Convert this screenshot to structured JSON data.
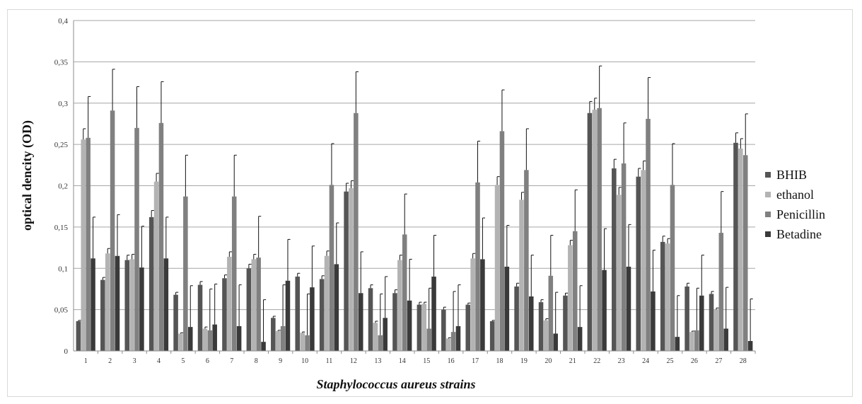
{
  "chart_data": {
    "type": "bar",
    "title": "",
    "xlabel": "Staphylococcus aureus strains",
    "ylabel": "optical dencity (OD)",
    "ylim": [
      0,
      0.4
    ],
    "yticks": [
      0,
      0.05,
      0.1,
      0.15,
      0.2,
      0.25,
      0.3,
      0.35,
      0.4
    ],
    "ytick_labels": [
      "0",
      "0,05",
      "0,1",
      "0,15",
      "0,2",
      "0,25",
      "0,3",
      "0,35",
      "0,4"
    ],
    "grid": true,
    "legend_position": "right",
    "error_bars": true,
    "categories": [
      "1",
      "2",
      "3",
      "4",
      "5",
      "6",
      "7",
      "8",
      "9",
      "10",
      "11",
      "12",
      "13",
      "14",
      "15",
      "16",
      "17",
      "18",
      "19",
      "20",
      "21",
      "22",
      "23",
      "24",
      "25",
      "26",
      "27",
      "28"
    ],
    "series": [
      {
        "name": "BHIB",
        "color": "#555555",
        "values": [
          0.036,
          0.086,
          0.11,
          0.162,
          0.068,
          0.08,
          0.088,
          0.1,
          0.04,
          0.09,
          0.087,
          0.193,
          0.076,
          0.07,
          0.056,
          0.05,
          0.056,
          0.036,
          0.078,
          0.059,
          0.067,
          0.288,
          0.221,
          0.211,
          0.132,
          0.078,
          0.069,
          0.252
        ],
        "errors": [
          0.001,
          0.003,
          0.006,
          0.008,
          0.003,
          0.004,
          0.004,
          0.005,
          0.002,
          0.004,
          0.004,
          0.01,
          0.004,
          0.004,
          0.003,
          0.003,
          0.002,
          0.001,
          0.004,
          0.003,
          0.003,
          0.014,
          0.011,
          0.01,
          0.007,
          0.004,
          0.003,
          0.012
        ]
      },
      {
        "name": "ethanol",
        "color": "#b3b3b3",
        "values": [
          0.256,
          0.118,
          0.111,
          0.205,
          0.021,
          0.027,
          0.114,
          0.111,
          0.024,
          0.022,
          0.115,
          0.197,
          0.034,
          0.11,
          0.057,
          0.015,
          0.112,
          0.201,
          0.183,
          0.037,
          0.128,
          0.292,
          0.189,
          0.219,
          0.13,
          0.023,
          0.05,
          0.245
        ],
        "errors": [
          0.013,
          0.006,
          0.006,
          0.01,
          0.001,
          0.002,
          0.006,
          0.006,
          0.001,
          0.001,
          0.006,
          0.009,
          0.002,
          0.006,
          0.002,
          0.001,
          0.006,
          0.01,
          0.009,
          0.002,
          0.006,
          0.014,
          0.009,
          0.011,
          0.006,
          0.001,
          0.002,
          0.012
        ]
      },
      {
        "name": "Penicillin",
        "color": "#808080",
        "values": [
          0.258,
          0.291,
          0.27,
          0.276,
          0.187,
          0.025,
          0.187,
          0.113,
          0.03,
          0.019,
          0.201,
          0.288,
          0.019,
          0.141,
          0.027,
          0.023,
          0.204,
          0.266,
          0.219,
          0.091,
          0.145,
          0.294,
          0.227,
          0.281,
          0.201,
          0.025,
          0.143,
          0.237
        ],
        "errors": [
          0.05,
          0.05,
          0.05,
          0.05,
          0.05,
          0.05,
          0.05,
          0.05,
          0.05,
          0.05,
          0.05,
          0.05,
          0.05,
          0.049,
          0.049,
          0.049,
          0.05,
          0.05,
          0.05,
          0.049,
          0.05,
          0.051,
          0.049,
          0.05,
          0.05,
          0.051,
          0.05,
          0.05
        ]
      },
      {
        "name": "Betadine",
        "color": "#3a3a3a",
        "values": [
          0.112,
          0.115,
          0.101,
          0.112,
          0.029,
          0.032,
          0.03,
          0.011,
          0.085,
          0.077,
          0.105,
          0.07,
          0.04,
          0.061,
          0.09,
          0.03,
          0.111,
          0.102,
          0.066,
          0.021,
          0.029,
          0.098,
          0.102,
          0.072,
          0.017,
          0.067,
          0.027,
          0.012
        ],
        "errors": [
          0.05,
          0.05,
          0.05,
          0.05,
          0.05,
          0.049,
          0.05,
          0.051,
          0.05,
          0.05,
          0.05,
          0.05,
          0.05,
          0.05,
          0.05,
          0.05,
          0.05,
          0.05,
          0.05,
          0.05,
          0.05,
          0.05,
          0.051,
          0.05,
          0.05,
          0.049,
          0.05,
          0.051
        ]
      }
    ]
  }
}
